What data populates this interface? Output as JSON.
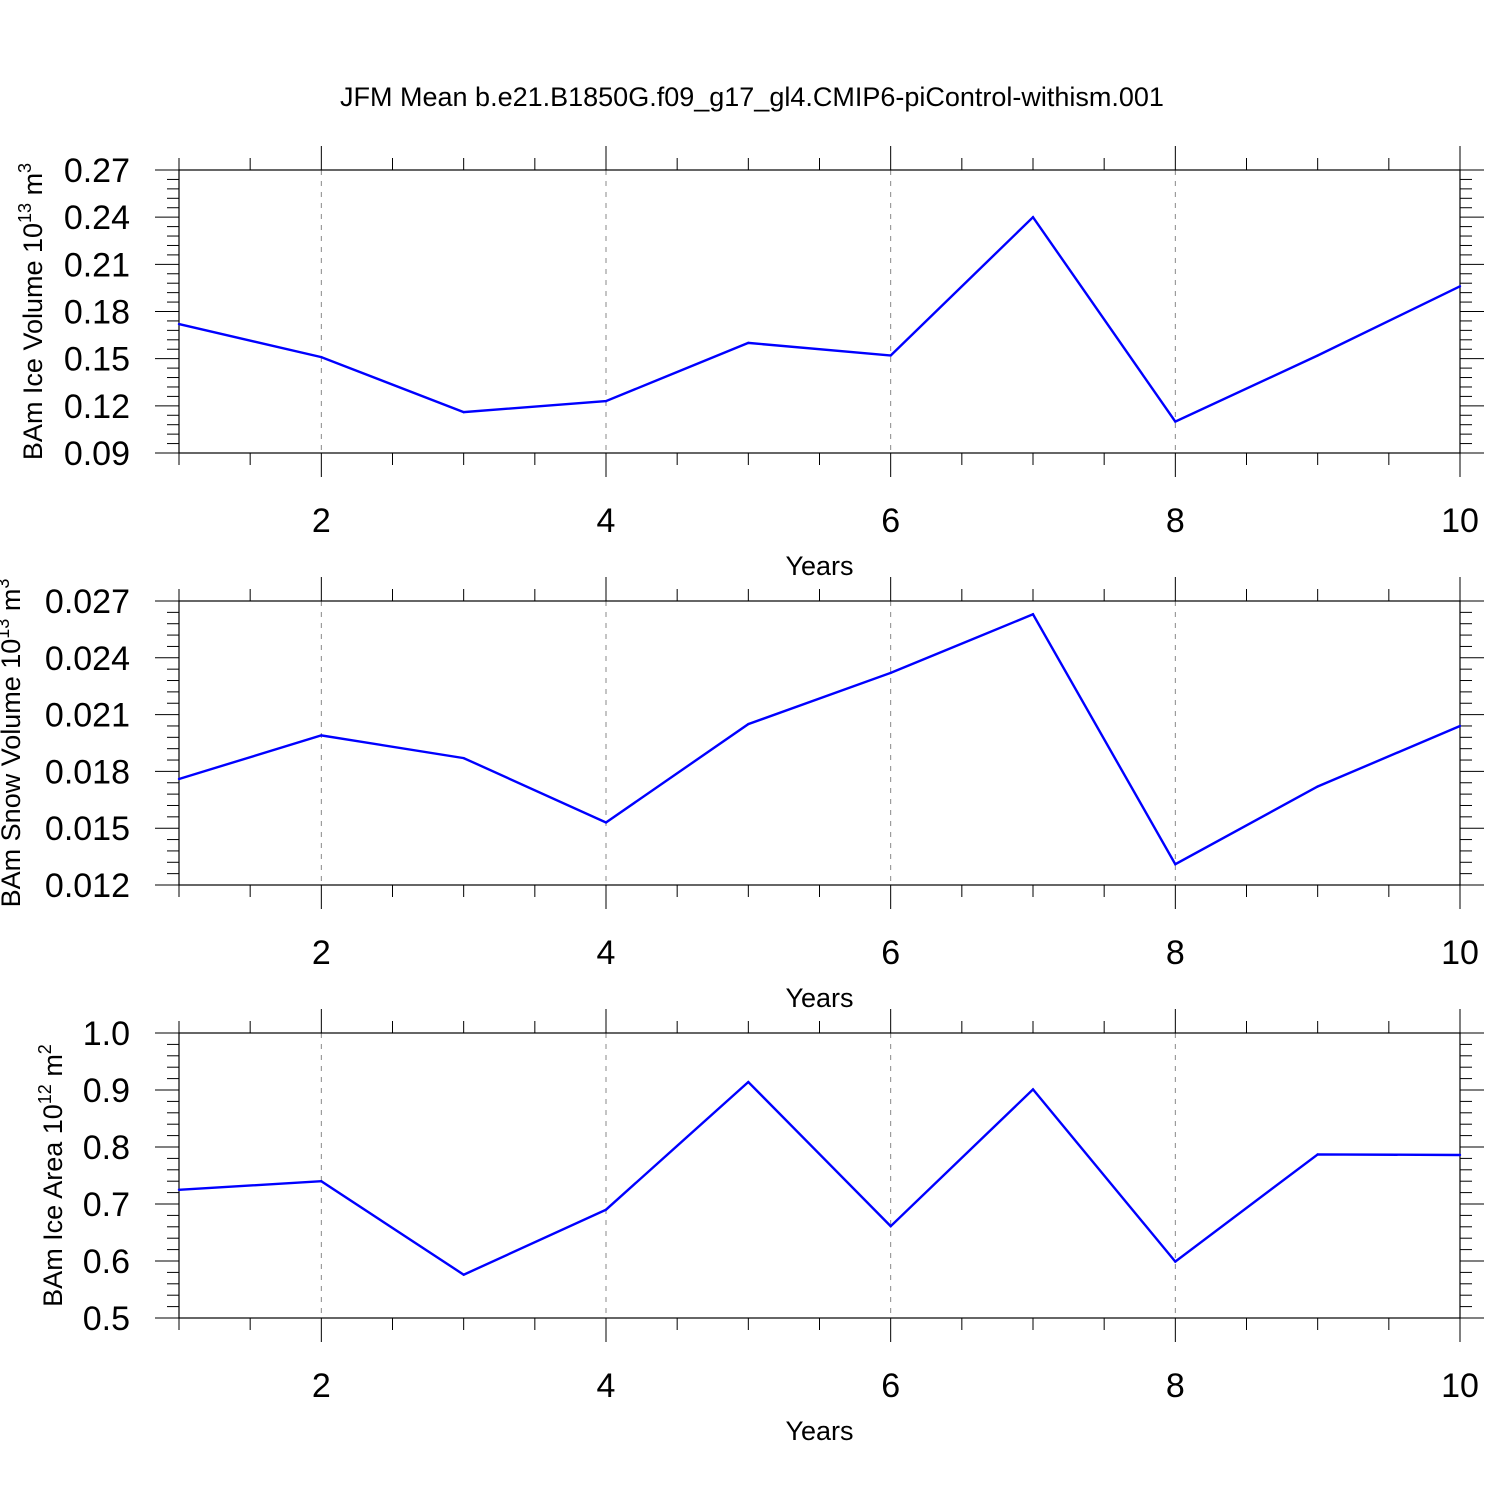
{
  "figure": {
    "title": "JFM Mean b.e21.B1850G.f09_g17_gl4.CMIP6-piControl-withism.001"
  },
  "colors": {
    "line": "#0000ff",
    "axes": "#000000",
    "grid": "#888888",
    "background": "#ffffff"
  },
  "chart_data": [
    {
      "type": "line",
      "title": "",
      "xlabel": "Years",
      "ylabel": {
        "prefix": "BAm Ice Volume 10",
        "exponent": "13",
        "unit": " m",
        "unit_exponent": "3"
      },
      "xlim": [
        1,
        10
      ],
      "ylim": [
        0.09,
        0.27
      ],
      "xticks": [
        2,
        4,
        6,
        8,
        10
      ],
      "xtick_labels": [
        "2",
        "4",
        "6",
        "8",
        "10"
      ],
      "yticks": [
        0.09,
        0.12,
        0.15,
        0.18,
        0.21,
        0.24,
        0.27
      ],
      "ytick_labels": [
        "0.09",
        "0.12",
        "0.15",
        "0.18",
        "0.21",
        "0.24",
        "0.27"
      ],
      "y_minor_step": 0.006,
      "x_minor_step": 0.5,
      "grid": "vertical dashed at major x ticks",
      "x": [
        1,
        2,
        3,
        4,
        5,
        6,
        7,
        8,
        9,
        10
      ],
      "series": [
        {
          "values": [
            0.172,
            0.151,
            0.116,
            0.123,
            0.16,
            0.152,
            0.24,
            0.11,
            0.152,
            0.196
          ]
        }
      ]
    },
    {
      "type": "line",
      "title": "",
      "xlabel": "Years",
      "ylabel": {
        "prefix": "BAm Snow Volume 10",
        "exponent": "13",
        "unit": " m",
        "unit_exponent": "3"
      },
      "xlim": [
        1,
        10
      ],
      "ylim": [
        0.012,
        0.027
      ],
      "xticks": [
        2,
        4,
        6,
        8,
        10
      ],
      "xtick_labels": [
        "2",
        "4",
        "6",
        "8",
        "10"
      ],
      "yticks": [
        0.012,
        0.015,
        0.018,
        0.021,
        0.024,
        0.027
      ],
      "ytick_labels": [
        "0.012",
        "0.015",
        "0.018",
        "0.021",
        "0.024",
        "0.027"
      ],
      "y_minor_step": 0.0006,
      "x_minor_step": 0.5,
      "grid": "vertical dashed at major x ticks",
      "x": [
        1,
        2,
        3,
        4,
        5,
        6,
        7,
        8,
        9,
        10
      ],
      "series": [
        {
          "values": [
            0.0176,
            0.0199,
            0.0187,
            0.0153,
            0.0205,
            0.0232,
            0.0263,
            0.0131,
            0.0172,
            0.0204
          ]
        }
      ]
    },
    {
      "type": "line",
      "title": "",
      "xlabel": "Years",
      "ylabel": {
        "prefix": "BAm Ice Area 10",
        "exponent": "12",
        "unit": " m",
        "unit_exponent": "2"
      },
      "xlim": [
        1,
        10
      ],
      "ylim": [
        0.5,
        1.0
      ],
      "xticks": [
        2,
        4,
        6,
        8,
        10
      ],
      "xtick_labels": [
        "2",
        "4",
        "6",
        "8",
        "10"
      ],
      "yticks": [
        0.5,
        0.6,
        0.7,
        0.8,
        0.9,
        1.0
      ],
      "ytick_labels": [
        "0.5",
        "0.6",
        "0.7",
        "0.8",
        "0.9",
        "1.0"
      ],
      "y_minor_step": 0.02,
      "x_minor_step": 0.5,
      "grid": "vertical dashed at major x ticks",
      "x": [
        1,
        2,
        3,
        4,
        5,
        6,
        7,
        8,
        9,
        10
      ],
      "series": [
        {
          "values": [
            0.725,
            0.74,
            0.576,
            0.69,
            0.914,
            0.661,
            0.901,
            0.599,
            0.787,
            0.786
          ]
        }
      ]
    }
  ]
}
